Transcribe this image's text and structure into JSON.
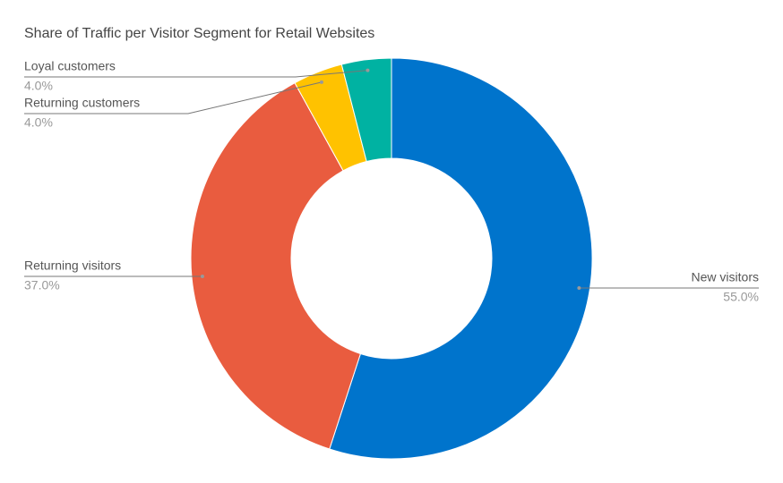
{
  "chart_data": {
    "type": "donut",
    "title": "Share of Traffic per Visitor Segment for Retail Websites",
    "categories": [
      "New visitors",
      "Returning visitors",
      "Returning customers",
      "Loyal customers"
    ],
    "values": [
      55,
      37,
      4,
      4
    ],
    "value_labels": [
      "55.0%",
      "37.0%",
      "4.0%",
      "4.0%"
    ],
    "colors": [
      "#0074cc",
      "#e95c3f",
      "#ffc200",
      "#00b2a2"
    ]
  }
}
